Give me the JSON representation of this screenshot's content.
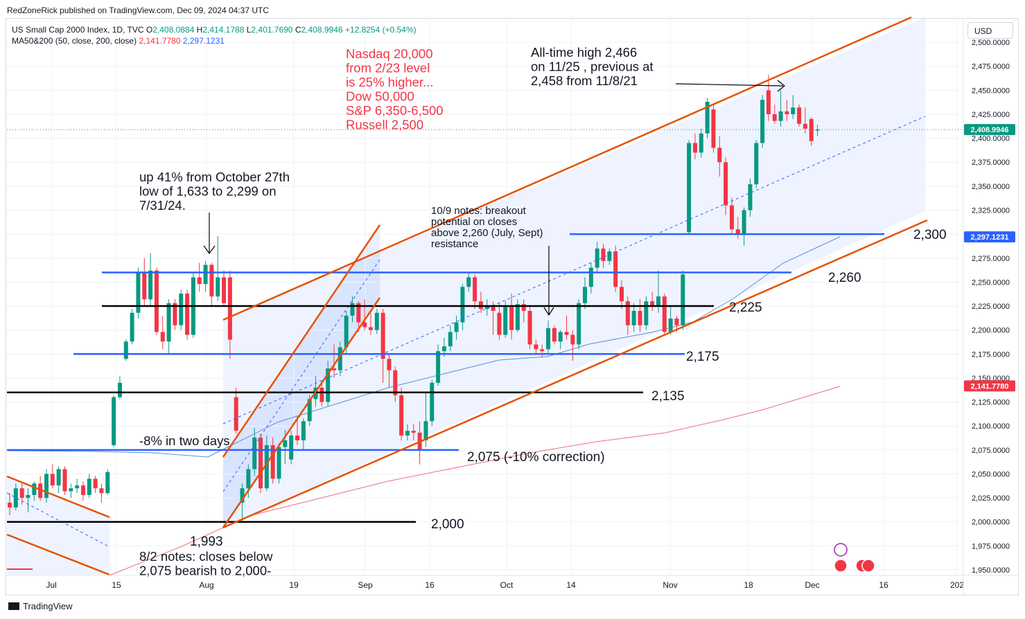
{
  "header": {
    "publisher": "RedZoneRick published on TradingView.com, Dec 09, 2024 04:37 UTC"
  },
  "legend": {
    "symbol": "US Small Cap 2000 Index, 1D, TVC",
    "o_label": "O",
    "o_value": "2,408.0884",
    "h_label": "H",
    "h_value": "2,414.1788",
    "l_label": "L",
    "l_value": "2,401.7690",
    "c_label": "C",
    "c_value": "2,408.9946",
    "change": "+12.8254 (+0.54%)",
    "ma_label": "MA50&200 (50, close, 200, close)",
    "ma50": "2,141.7780",
    "ma200": "2,297.1231"
  },
  "currency": "USD",
  "footer": {
    "brand": "TradingView"
  },
  "colors": {
    "up": "#089981",
    "down": "#f23645",
    "support_blue": "#2962ff",
    "channel": "#e65100",
    "black_line": "#000000",
    "ma_short": "#5b8fd6",
    "ma_long": "#ef6b82",
    "annotation_red": "#f23645"
  },
  "chart_data": {
    "type": "candlestick",
    "y_range": [
      1940,
      2505
    ],
    "x_tick_labels": [
      "Jul",
      "15",
      "Aug",
      "19",
      "Sep",
      "16",
      "Oct",
      "14",
      "Nov",
      "18",
      "Dec",
      "16",
      "202"
    ],
    "y_tick_labels": [
      "1,950.0000",
      "1,975.0000",
      "2,000.0000",
      "2,025.0000",
      "2,050.0000",
      "2,075.0000",
      "2,100.0000",
      "2,125.0000",
      "2,150.0000",
      "2,175.0000",
      "2,200.0000",
      "2,225.0000",
      "2,250.0000",
      "2,275.0000",
      "2,300.0000",
      "2,325.0000",
      "2,350.0000",
      "2,375.0000",
      "2,400.0000",
      "2,425.0000",
      "2,450.0000",
      "2,475.0000",
      "2,500.0000"
    ],
    "price_badges": [
      {
        "value": 2408.9946,
        "label": "2,408.9946",
        "color": "#089981"
      },
      {
        "value": 2297.1231,
        "label": "2,297.1231",
        "color": "#2962ff"
      },
      {
        "value": 2141.778,
        "label": "2,141.7780",
        "color": "#f23645"
      }
    ],
    "level_labels": [
      "2,300",
      "2,260",
      "2,225",
      "2,175",
      "2,135",
      "2,075 (-10% correction)",
      "2,000",
      "1,993"
    ],
    "annotations": {
      "targets": [
        "Nasdaq 20,000",
        "from 2/23 level",
        "is 25% higher...",
        "Dow 50,000",
        "S&P 6,350-6,500",
        "Russell 2,500"
      ],
      "ath": [
        "All-time high 2,466",
        "on 11/25 , previous at",
        "2,458 from 11/8/21"
      ],
      "up41": [
        "up 41% from October 27th",
        "low of 1,633 to 2,299 on",
        "7/31/24."
      ],
      "notes109": [
        "10/9 notes: breakout",
        "potential on closes",
        "above 2,260 (July, Sept)",
        "resistance"
      ],
      "drop": "-8% in two days",
      "notes82": [
        "8/2 notes: closes below",
        "2,075 bearish to 2,000-"
      ]
    },
    "candles": [
      [
        2020,
        2030,
        2007,
        2015
      ],
      [
        2015,
        2040,
        2012,
        2035
      ],
      [
        2035,
        2040,
        2018,
        2025
      ],
      [
        2025,
        2035,
        2010,
        2028
      ],
      [
        2028,
        2042,
        2022,
        2040
      ],
      [
        2040,
        2048,
        2022,
        2025
      ],
      [
        2025,
        2055,
        2020,
        2050
      ],
      [
        2050,
        2060,
        2035,
        2038
      ],
      [
        2038,
        2058,
        2030,
        2055
      ],
      [
        2055,
        2058,
        2028,
        2032
      ],
      [
        2032,
        2040,
        2025,
        2035
      ],
      [
        2035,
        2045,
        2030,
        2038
      ],
      [
        2038,
        2042,
        2022,
        2028
      ],
      [
        2028,
        2050,
        2025,
        2045
      ],
      [
        2045,
        2048,
        2030,
        2035
      ],
      [
        2035,
        2040,
        2020,
        2030
      ],
      [
        2030,
        2055,
        2028,
        2052
      ],
      [
        2080,
        2132,
        2078,
        2130
      ],
      [
        2130,
        2152,
        2128,
        2145
      ],
      [
        2170,
        2190,
        2168,
        2188
      ],
      [
        2188,
        2222,
        2185,
        2218
      ],
      [
        2218,
        2265,
        2212,
        2260
      ],
      [
        2260,
        2275,
        2225,
        2232
      ],
      [
        2232,
        2280,
        2225,
        2262
      ],
      [
        2262,
        2265,
        2195,
        2198
      ],
      [
        2198,
        2215,
        2180,
        2188
      ],
      [
        2188,
        2232,
        2175,
        2228
      ],
      [
        2228,
        2232,
        2200,
        2205
      ],
      [
        2205,
        2242,
        2200,
        2238
      ],
      [
        2238,
        2242,
        2190,
        2195
      ],
      [
        2195,
        2260,
        2192,
        2255
      ],
      [
        2255,
        2270,
        2240,
        2248
      ],
      [
        2248,
        2272,
        2240,
        2268
      ],
      [
        2268,
        2270,
        2225,
        2235
      ],
      [
        2235,
        2298,
        2230,
        2255
      ],
      [
        2255,
        2262,
        2225,
        2228
      ],
      [
        2255,
        2262,
        2170,
        2190
      ],
      [
        2130,
        2140,
        2092,
        2095
      ],
      [
        2020,
        2040,
        2000,
        2035
      ],
      [
        2035,
        2060,
        2025,
        2055
      ],
      [
        2055,
        2098,
        2048,
        2088
      ],
      [
        2088,
        2092,
        2030,
        2035
      ],
      [
        2035,
        2090,
        2032,
        2080
      ],
      [
        2080,
        2088,
        2040,
        2045
      ],
      [
        2045,
        2082,
        2040,
        2078
      ],
      [
        2078,
        2096,
        2060,
        2085
      ],
      [
        2065,
        2095,
        2060,
        2090
      ],
      [
        2090,
        2110,
        2080,
        2085
      ],
      [
        2085,
        2108,
        2075,
        2105
      ],
      [
        2105,
        2132,
        2100,
        2128
      ],
      [
        2128,
        2152,
        2120,
        2140
      ],
      [
        2140,
        2145,
        2120,
        2125
      ],
      [
        2125,
        2168,
        2120,
        2160
      ],
      [
        2160,
        2185,
        2150,
        2158
      ],
      [
        2158,
        2188,
        2152,
        2182
      ],
      [
        2182,
        2220,
        2176,
        2215
      ],
      [
        2215,
        2235,
        2208,
        2228
      ],
      [
        2228,
        2230,
        2198,
        2208
      ],
      [
        2208,
        2232,
        2200,
        2203
      ],
      [
        2203,
        2218,
        2195,
        2200
      ],
      [
        2200,
        2222,
        2196,
        2218
      ],
      [
        2218,
        2222,
        2145,
        2170
      ],
      [
        2170,
        2175,
        2140,
        2158
      ],
      [
        2158,
        2162,
        2125,
        2132
      ],
      [
        2132,
        2140,
        2085,
        2090
      ],
      [
        2090,
        2102,
        2085,
        2095
      ],
      [
        2095,
        2102,
        2085,
        2093
      ],
      [
        2093,
        2105,
        2060,
        2075
      ],
      [
        2085,
        2136,
        2078,
        2105
      ],
      [
        2105,
        2148,
        2100,
        2145
      ],
      [
        2145,
        2185,
        2142,
        2178
      ],
      [
        2178,
        2192,
        2172,
        2183
      ],
      [
        2183,
        2205,
        2178,
        2198
      ],
      [
        2198,
        2215,
        2190,
        2208
      ],
      [
        2208,
        2248,
        2200,
        2245
      ],
      [
        2245,
        2260,
        2240,
        2255
      ],
      [
        2255,
        2258,
        2222,
        2230
      ],
      [
        2230,
        2240,
        2218,
        2222
      ],
      [
        2222,
        2232,
        2215,
        2225
      ],
      [
        2225,
        2230,
        2195,
        2220
      ],
      [
        2218,
        2228,
        2190,
        2195
      ],
      [
        2195,
        2230,
        2192,
        2225
      ],
      [
        2225,
        2238,
        2190,
        2200
      ],
      [
        2200,
        2232,
        2198,
        2227
      ],
      [
        2227,
        2232,
        2208,
        2220
      ],
      [
        2220,
        2225,
        2180,
        2185
      ],
      [
        2185,
        2190,
        2175,
        2180
      ],
      [
        2180,
        2185,
        2172,
        2178
      ],
      [
        2180,
        2210,
        2176,
        2202
      ],
      [
        2202,
        2205,
        2185,
        2188
      ],
      [
        2188,
        2200,
        2180,
        2198
      ],
      [
        2198,
        2215,
        2190,
        2195
      ],
      [
        2195,
        2200,
        2168,
        2185
      ],
      [
        2185,
        2232,
        2180,
        2228
      ],
      [
        2228,
        2255,
        2222,
        2245
      ],
      [
        2245,
        2270,
        2238,
        2265
      ],
      [
        2265,
        2292,
        2260,
        2285
      ],
      [
        2285,
        2290,
        2265,
        2272
      ],
      [
        2272,
        2285,
        2268,
        2282
      ],
      [
        2282,
        2288,
        2240,
        2245
      ],
      [
        2245,
        2252,
        2222,
        2230
      ],
      [
        2230,
        2235,
        2195,
        2205
      ],
      [
        2205,
        2228,
        2198,
        2220
      ],
      [
        2220,
        2232,
        2198,
        2205
      ],
      [
        2205,
        2235,
        2200,
        2230
      ],
      [
        2230,
        2240,
        2220,
        2225
      ],
      [
        2225,
        2262,
        2218,
        2235
      ],
      [
        2235,
        2238,
        2195,
        2198
      ],
      [
        2198,
        2225,
        2195,
        2212
      ],
      [
        2212,
        2215,
        2198,
        2205
      ],
      [
        2205,
        2262,
        2200,
        2258
      ],
      [
        2302,
        2398,
        2300,
        2395
      ],
      [
        2395,
        2405,
        2378,
        2385
      ],
      [
        2385,
        2410,
        2380,
        2405
      ],
      [
        2405,
        2442,
        2400,
        2438
      ],
      [
        2430,
        2435,
        2385,
        2390
      ],
      [
        2390,
        2402,
        2360,
        2375
      ],
      [
        2375,
        2380,
        2320,
        2330
      ],
      [
        2330,
        2338,
        2300,
        2305
      ],
      [
        2305,
        2318,
        2295,
        2300
      ],
      [
        2300,
        2328,
        2288,
        2325
      ],
      [
        2325,
        2358,
        2318,
        2352
      ],
      [
        2352,
        2398,
        2348,
        2395
      ],
      [
        2395,
        2445,
        2390,
        2440
      ],
      [
        2450,
        2466,
        2418,
        2425
      ],
      [
        2425,
        2435,
        2415,
        2418
      ],
      [
        2418,
        2450,
        2412,
        2428
      ],
      [
        2428,
        2440,
        2418,
        2425
      ],
      [
        2425,
        2445,
        2420,
        2432
      ],
      [
        2432,
        2435,
        2412,
        2415
      ],
      [
        2415,
        2432,
        2405,
        2410
      ],
      [
        2420,
        2422,
        2392,
        2397
      ],
      [
        2408,
        2414,
        2402,
        2409
      ]
    ]
  }
}
